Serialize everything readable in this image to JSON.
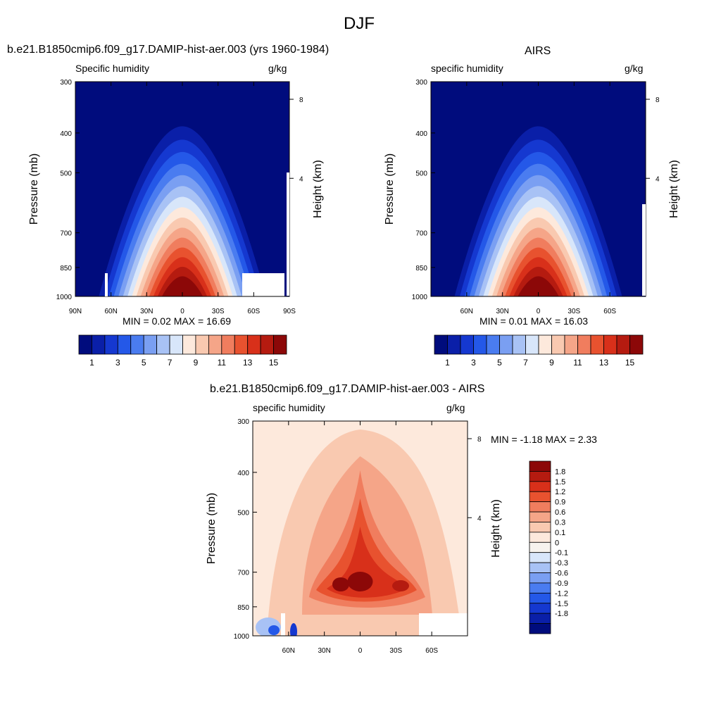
{
  "page": {
    "title": "DJF"
  },
  "chart_data": [
    {
      "type": "heatmap",
      "id": "model",
      "title": "b.e21.B1850cmip6.f09_g17.DAMIP-hist-aer.003 (yrs 1960-1984)",
      "left_label": "Specific humidity",
      "right_label": "g/kg",
      "ylabel": "Pressure (mb)",
      "ylabel_right": "Height (km)",
      "x_ticks": [
        "90N",
        "60N",
        "30N",
        "0",
        "30S",
        "60S",
        "90S"
      ],
      "y_ticks": [
        "300",
        "400",
        "500",
        "700",
        "850",
        "1000"
      ],
      "height_ticks": [
        "8",
        "4"
      ],
      "stats": "MIN =   0.02  MAX =  16.69",
      "colorbar_labels": [
        "1",
        "3",
        "5",
        "7",
        "9",
        "11",
        "13",
        "15"
      ],
      "xlim": [
        90,
        -90
      ],
      "ylim": [
        1000,
        300
      ],
      "peak_value": 16.69,
      "min_value": 0.02
    },
    {
      "type": "heatmap",
      "id": "obs",
      "title": "AIRS",
      "left_label": "specific humidity",
      "right_label": "g/kg",
      "ylabel": "Pressure (mb)",
      "ylabel_right": "Height (km)",
      "x_ticks": [
        "60N",
        "30N",
        "0",
        "30S",
        "60S"
      ],
      "y_ticks": [
        "300",
        "400",
        "500",
        "700",
        "850",
        "1000"
      ],
      "height_ticks": [
        "8",
        "4"
      ],
      "stats": "MIN =   0.01  MAX =  16.03",
      "colorbar_labels": [
        "1",
        "3",
        "5",
        "7",
        "9",
        "11",
        "13",
        "15"
      ],
      "xlim": [
        90,
        -90
      ],
      "ylim": [
        1000,
        300
      ],
      "peak_value": 16.03,
      "min_value": 0.01
    },
    {
      "type": "heatmap",
      "id": "diff",
      "title": "b.e21.B1850cmip6.f09_g17.DAMIP-hist-aer.003 - AIRS",
      "left_label": "specific humidity",
      "right_label": "g/kg",
      "ylabel": "Pressure (mb)",
      "ylabel_right": "Height (km)",
      "x_ticks": [
        "60N",
        "30N",
        "0",
        "30S",
        "60S"
      ],
      "y_ticks": [
        "300",
        "400",
        "500",
        "700",
        "850",
        "1000"
      ],
      "height_ticks": [
        "8",
        "4"
      ],
      "stats": "MIN =  -1.18  MAX =   2.33",
      "colorbar_labels": [
        "1.8",
        "1.5",
        "1.2",
        "0.9",
        "0.6",
        "0.3",
        "0.1",
        "0",
        "-0.1",
        "-0.3",
        "-0.6",
        "-0.9",
        "-1.2",
        "-1.5",
        "-1.8"
      ],
      "xlim": [
        90,
        -90
      ],
      "ylim": [
        1000,
        300
      ],
      "min_value": -1.18,
      "max_value": 2.33
    }
  ],
  "colors": {
    "humidity_scale": [
      "#000c7d",
      "#0a1fa8",
      "#1538d0",
      "#2458e8",
      "#4a7cf0",
      "#7a9ff2",
      "#a8c2f5",
      "#d8e6fa",
      "#fde9dc",
      "#f9c9b0",
      "#f5a588",
      "#f07d5e",
      "#e8522f",
      "#d8301a",
      "#b51b10",
      "#8c0808"
    ],
    "diff_scale": [
      "#8c0808",
      "#b51b10",
      "#d8301a",
      "#e8522f",
      "#f07d5e",
      "#f5a588",
      "#f9c9b0",
      "#fde9dc",
      "#f7f3ee",
      "#d8e6fa",
      "#a8c2f5",
      "#7a9ff2",
      "#4a7cf0",
      "#2458e8",
      "#1538d0",
      "#0a1fa8",
      "#000c7d"
    ]
  }
}
